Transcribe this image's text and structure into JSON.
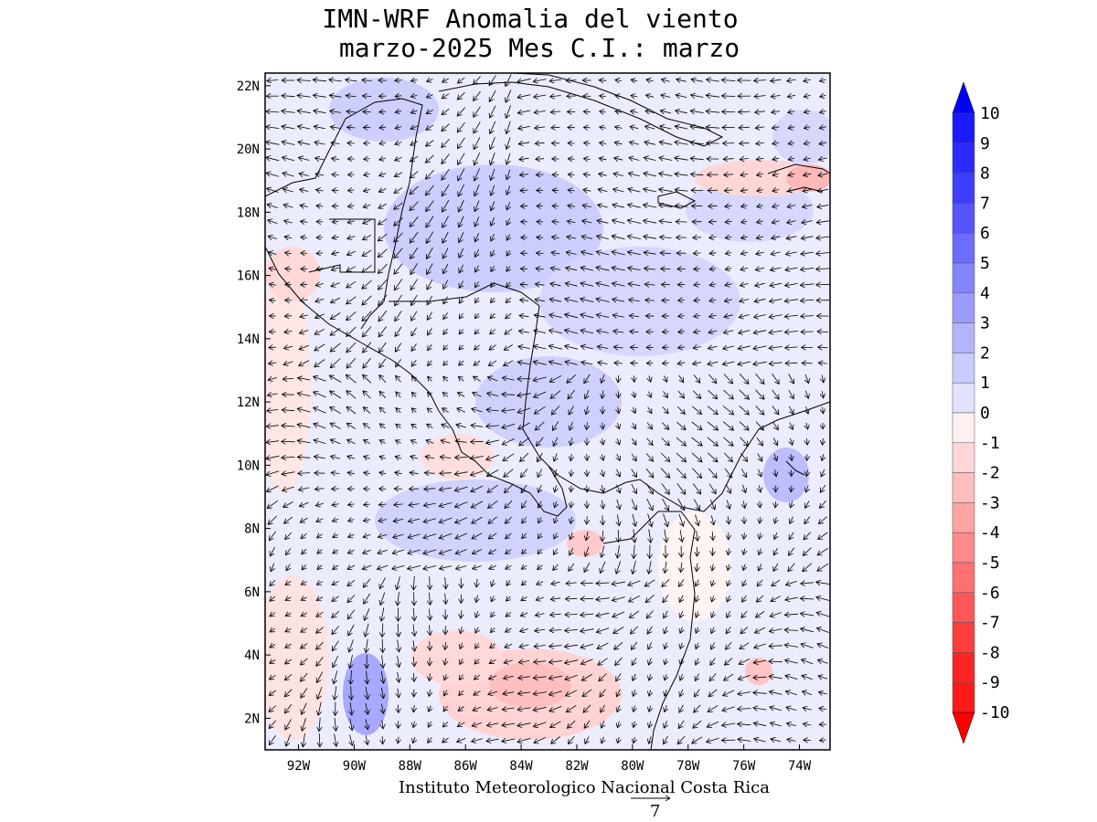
{
  "title": {
    "line1": "IMN-WRF Anomalia del viento",
    "line2": "marzo-2025 Mes C.I.: marzo"
  },
  "credit": "Instituto Meteorologico Nacional Costa Rica",
  "reference_vector": {
    "value_label": "7",
    "value": 7
  },
  "map": {
    "lon_ticks": [
      "92W",
      "90W",
      "88W",
      "86W",
      "84W",
      "82W",
      "80W",
      "78W",
      "76W",
      "74W"
    ],
    "lon_values": [
      -92,
      -90,
      -88,
      -86,
      -84,
      -82,
      -80,
      -78,
      -76,
      -74
    ],
    "lat_ticks": [
      "22N",
      "20N",
      "18N",
      "16N",
      "14N",
      "12N",
      "10N",
      "8N",
      "6N",
      "4N",
      "2N"
    ],
    "lat_values": [
      22,
      20,
      18,
      16,
      14,
      12,
      10,
      8,
      6,
      4,
      2
    ],
    "lon_range": [
      -93.2,
      -72.9
    ],
    "lat_range": [
      1.0,
      22.4
    ]
  },
  "colorbar": {
    "labels": [
      "10",
      "9",
      "8",
      "7",
      "6",
      "5",
      "4",
      "3",
      "2",
      "1",
      "0",
      "-1",
      "-2",
      "-3",
      "-4",
      "-5",
      "-6",
      "-7",
      "-8",
      "-9",
      "-10"
    ],
    "colors": [
      "#1a1aff",
      "#2b2bff",
      "#3d3dff",
      "#5555ff",
      "#6c6cff",
      "#8484ff",
      "#9c9cff",
      "#b3b3ff",
      "#cbcbff",
      "#e2e2ff",
      "#fff0f0",
      "#ffd6d6",
      "#ffbdbd",
      "#ffa3a3",
      "#ff8a8a",
      "#ff7070",
      "#ff5757",
      "#ff3d3d",
      "#ff2424",
      "#ff1a1a"
    ],
    "top_arrow_color": "#0000ff",
    "bottom_arrow_color": "#ff0000"
  }
}
